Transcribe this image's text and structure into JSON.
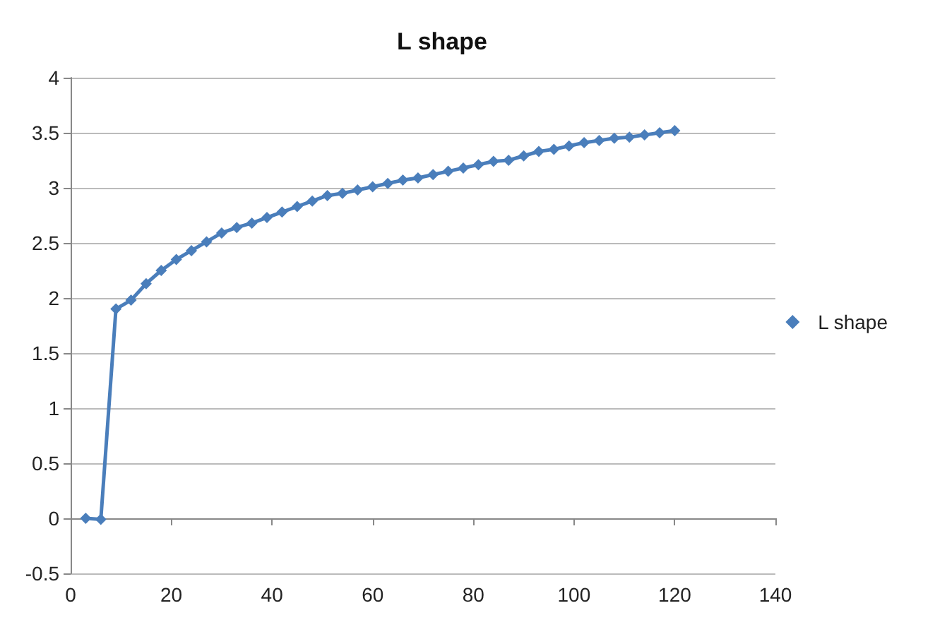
{
  "chart_data": {
    "type": "line",
    "title": "L shape",
    "x": [
      3,
      6,
      9,
      12,
      15,
      18,
      21,
      24,
      27,
      30,
      33,
      36,
      39,
      42,
      45,
      48,
      51,
      54,
      57,
      60,
      63,
      66,
      69,
      72,
      75,
      78,
      81,
      84,
      87,
      90,
      93,
      96,
      99,
      102,
      105,
      108,
      111,
      114,
      117,
      120
    ],
    "series": [
      {
        "name": "L shape",
        "color": "#4a7ebb",
        "values": [
          0,
          -0.01,
          1.9,
          1.98,
          2.13,
          2.25,
          2.35,
          2.43,
          2.51,
          2.59,
          2.64,
          2.68,
          2.73,
          2.78,
          2.83,
          2.88,
          2.93,
          2.95,
          2.98,
          3.01,
          3.04,
          3.07,
          3.09,
          3.12,
          3.15,
          3.18,
          3.21,
          3.24,
          3.25,
          3.29,
          3.33,
          3.35,
          3.38,
          3.41,
          3.43,
          3.45,
          3.46,
          3.48,
          3.5,
          3.52
        ]
      }
    ],
    "xlim": [
      0,
      140
    ],
    "xticks": [
      0,
      20,
      40,
      60,
      80,
      100,
      120,
      140
    ],
    "ylim": [
      -0.5,
      4
    ],
    "yticks": [
      -0.5,
      0,
      0.5,
      1,
      1.5,
      2,
      2.5,
      3,
      3.5,
      4
    ],
    "grid": "y",
    "legend": "right",
    "marker": "diamond"
  }
}
